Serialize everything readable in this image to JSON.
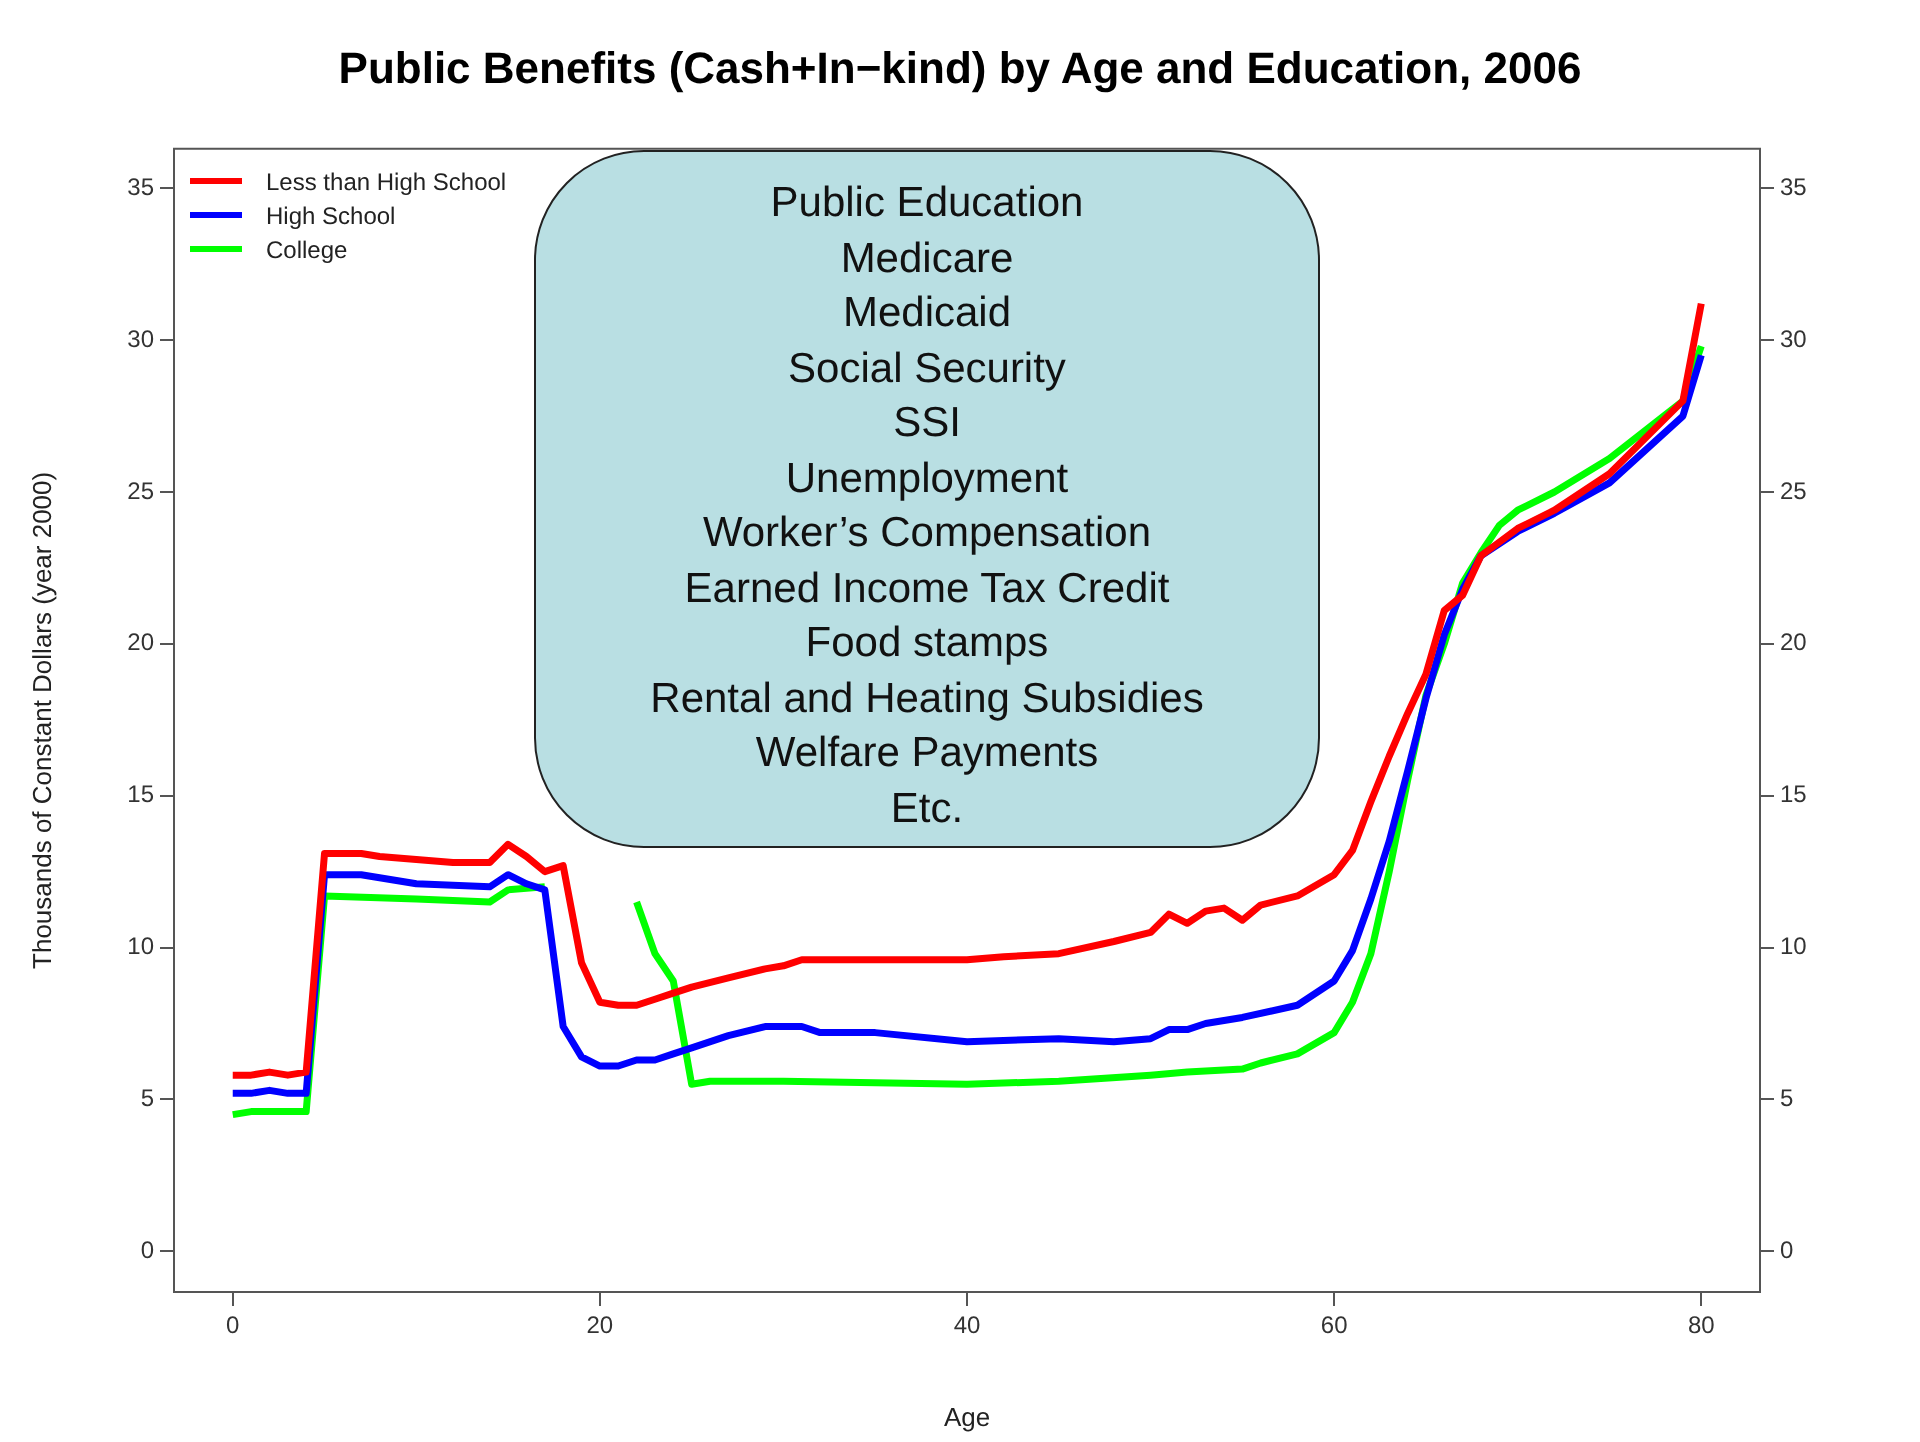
{
  "chart_data": {
    "type": "line",
    "title": "Public Benefits (Cash+In−kind) by Age and Education, 2006",
    "xlabel": "Age",
    "ylabel": "Thousands of Constant Dollars (year 2000)",
    "xlim": [
      -3.2,
      83.2
    ],
    "xticks": [
      0,
      20,
      40,
      60,
      80
    ],
    "ylim": [
      -1.34,
      36.3
    ],
    "yticks": [
      0,
      5,
      10,
      15,
      20,
      25,
      30,
      35
    ],
    "y2lim": [
      -1.34,
      36.3
    ],
    "y2ticks": [
      0,
      5,
      10,
      15,
      20,
      25,
      30,
      35
    ],
    "legend": "top left",
    "grid": false,
    "marker": "none",
    "line_style": "solid",
    "annotations": [
      "Public Education",
      "Medicare",
      "Medicaid",
      "Social Security",
      "SSI",
      "Unemployment",
      "Worker’s Compensation",
      "Earned Income Tax Credit",
      "Food stamps",
      "Rental and Heating Subsidies",
      "Welfare Payments",
      "Etc."
    ],
    "series": [
      {
        "name": "Less than High School",
        "color": "#ff0000",
        "x": [
          0,
          1,
          2,
          3,
          4,
          5,
          6,
          7,
          8,
          10,
          12,
          14,
          15,
          16,
          17,
          18,
          19,
          20,
          21,
          22,
          23,
          24,
          25,
          27,
          29,
          30,
          31,
          35,
          40,
          42,
          45,
          48,
          50,
          51,
          52,
          53,
          54,
          55,
          56,
          58,
          60,
          61,
          62,
          63,
          64,
          65,
          66,
          67,
          68,
          70,
          72,
          75,
          79,
          80
        ],
        "values": [
          5.8,
          5.8,
          5.9,
          5.8,
          5.9,
          13.1,
          13.1,
          13.1,
          13.0,
          12.9,
          12.8,
          12.8,
          13.4,
          13.0,
          12.5,
          12.7,
          9.5,
          8.2,
          8.1,
          8.1,
          8.3,
          8.5,
          8.7,
          9.0,
          9.3,
          9.4,
          9.6,
          9.6,
          9.6,
          9.7,
          9.8,
          10.2,
          10.5,
          11.1,
          10.8,
          11.2,
          11.3,
          10.9,
          11.4,
          11.7,
          12.4,
          13.2,
          14.8,
          16.3,
          17.7,
          19.0,
          21.1,
          21.6,
          22.9,
          23.8,
          24.4,
          25.6,
          28.0,
          31.2
        ]
      },
      {
        "name": "High School",
        "color": "#0000ff",
        "x": [
          0,
          1,
          2,
          3,
          4,
          5,
          6,
          7,
          10,
          14,
          15,
          16,
          17,
          18,
          19,
          20,
          21,
          22,
          23,
          24,
          25,
          27,
          29,
          31,
          32,
          35,
          40,
          45,
          48,
          50,
          51,
          52,
          53,
          55,
          58,
          60,
          61,
          62,
          63,
          64,
          65,
          66,
          67,
          68,
          70,
          72,
          75,
          79,
          80
        ],
        "values": [
          5.2,
          5.2,
          5.3,
          5.2,
          5.2,
          12.4,
          12.4,
          12.4,
          12.1,
          12.0,
          12.4,
          12.1,
          11.9,
          7.4,
          6.4,
          6.1,
          6.1,
          6.3,
          6.3,
          6.5,
          6.7,
          7.1,
          7.4,
          7.4,
          7.2,
          7.2,
          6.9,
          7.0,
          6.9,
          7.0,
          7.3,
          7.3,
          7.5,
          7.7,
          8.1,
          8.9,
          9.9,
          11.6,
          13.5,
          15.8,
          18.2,
          20.3,
          21.8,
          22.9,
          23.7,
          24.3,
          25.3,
          27.5,
          29.5
        ]
      },
      {
        "name": "College",
        "color": "#00ff00",
        "x": [
          0,
          1,
          2,
          3,
          4,
          5,
          10,
          14,
          15,
          17,
          18,
          19,
          20,
          21,
          22,
          23,
          24,
          25,
          26,
          30,
          40,
          45,
          50,
          52,
          55,
          56,
          58,
          60,
          61,
          62,
          63,
          64,
          65,
          66,
          67,
          68,
          69,
          70,
          72,
          75,
          79,
          80
        ],
        "values": [
          4.5,
          4.6,
          4.6,
          4.6,
          4.6,
          11.7,
          11.6,
          11.5,
          11.9,
          12.0,
          null,
          null,
          null,
          null,
          11.5,
          9.8,
          8.9,
          5.5,
          5.6,
          5.6,
          5.5,
          5.6,
          5.8,
          5.9,
          6.0,
          6.2,
          6.5,
          7.2,
          8.2,
          9.8,
          12.5,
          15.5,
          18.3,
          20.0,
          22.0,
          23.0,
          23.9,
          24.4,
          25.0,
          26.1,
          28.0,
          29.8
        ]
      }
    ]
  }
}
